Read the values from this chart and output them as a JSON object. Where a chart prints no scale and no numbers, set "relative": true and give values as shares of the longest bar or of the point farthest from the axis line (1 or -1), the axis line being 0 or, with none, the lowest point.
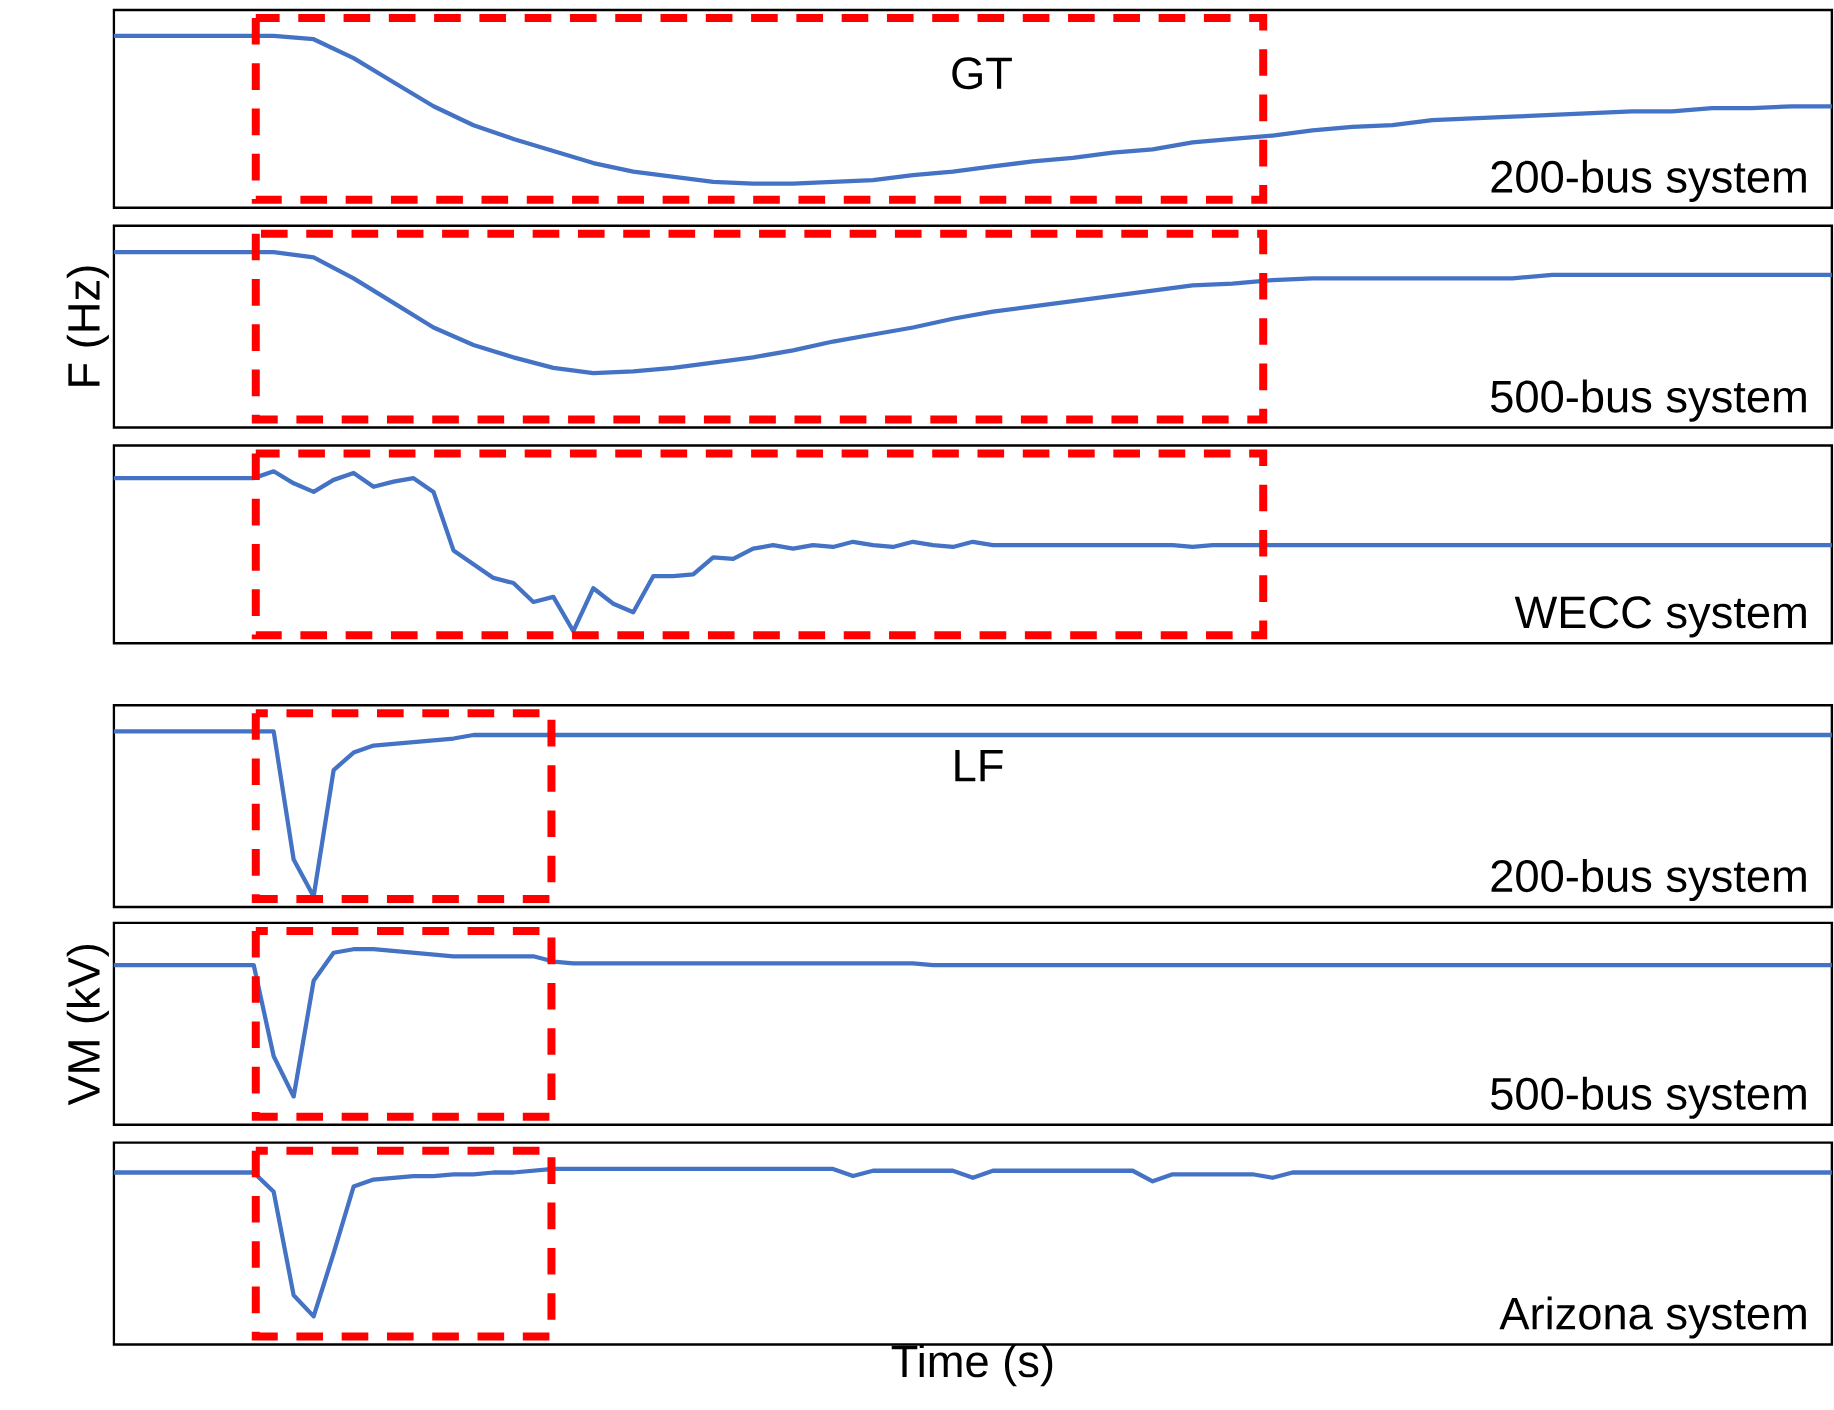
{
  "chart_data": [
    {
      "type": "line",
      "relative": true,
      "tick_labels": false,
      "title": "200-bus system",
      "annotations": [
        "GT"
      ],
      "categories": [
        null,
        null,
        null,
        null,
        null,
        null,
        null,
        null,
        null,
        null,
        null,
        null,
        null,
        null,
        null,
        null,
        null,
        null,
        null,
        null,
        null,
        null,
        null,
        null,
        null,
        null,
        null,
        null,
        null,
        null,
        null,
        null,
        null,
        null,
        null,
        null,
        null,
        null,
        null,
        null,
        null,
        null,
        null,
        null
      ],
      "series": [
        {
          "color": "#4472c4",
          "values": [
            1.0,
            1.0,
            1.0,
            1.0,
            1.0,
            0.98,
            0.87,
            0.73,
            0.59,
            0.48,
            0.4,
            0.33,
            0.26,
            0.21,
            0.18,
            0.15,
            0.14,
            0.14,
            0.15,
            0.16,
            0.19,
            0.21,
            0.24,
            0.27,
            0.29,
            0.32,
            0.34,
            0.38,
            0.4,
            0.42,
            0.45,
            0.47,
            0.48,
            0.51,
            0.52,
            0.53,
            0.54,
            0.55,
            0.56,
            0.56,
            0.58,
            0.58,
            0.59,
            0.59
          ]
        }
      ]
    },
    {
      "type": "line",
      "relative": true,
      "tick_labels": false,
      "title": "500-bus system",
      "ylabel": "F (Hz)",
      "categories": [
        null,
        null,
        null,
        null,
        null,
        null,
        null,
        null,
        null,
        null,
        null,
        null,
        null,
        null,
        null,
        null,
        null,
        null,
        null,
        null,
        null,
        null,
        null,
        null,
        null,
        null,
        null,
        null,
        null,
        null,
        null,
        null,
        null,
        null,
        null,
        null,
        null,
        null,
        null,
        null,
        null,
        null,
        null,
        null
      ],
      "series": [
        {
          "color": "#4472c4",
          "values": [
            1.0,
            1.0,
            1.0,
            1.0,
            1.0,
            0.97,
            0.85,
            0.71,
            0.57,
            0.47,
            0.4,
            0.34,
            0.31,
            0.32,
            0.34,
            0.37,
            0.4,
            0.44,
            0.49,
            0.53,
            0.57,
            0.62,
            0.66,
            0.69,
            0.72,
            0.75,
            0.78,
            0.81,
            0.82,
            0.84,
            0.85,
            0.85,
            0.85,
            0.85,
            0.85,
            0.85,
            0.87,
            0.87,
            0.87,
            0.87,
            0.87,
            0.87,
            0.87,
            0.87
          ]
        }
      ]
    },
    {
      "type": "line",
      "relative": true,
      "tick_labels": false,
      "title": "WECC system",
      "categories": [
        null,
        null,
        null,
        null,
        null,
        null,
        null,
        null,
        null,
        null,
        null,
        null,
        null,
        null,
        null,
        null,
        null,
        null,
        null,
        null,
        null,
        null,
        null,
        null,
        null,
        null,
        null,
        null,
        null,
        null,
        null,
        null,
        null,
        null,
        null,
        null,
        null,
        null,
        null,
        null,
        null,
        null,
        null,
        null,
        null,
        null,
        null,
        null,
        null,
        null,
        null,
        null,
        null,
        null,
        null,
        null,
        null,
        null,
        null,
        null,
        null,
        null,
        null,
        null,
        null,
        null,
        null,
        null,
        null,
        null,
        null,
        null,
        null,
        null,
        null,
        null,
        null,
        null,
        null,
        null,
        null,
        null,
        null,
        null,
        null,
        null,
        null
      ],
      "series": [
        {
          "color": "#4472c4",
          "values": [
            0.96,
            0.96,
            0.96,
            0.96,
            0.96,
            0.96,
            0.96,
            0.96,
            1.0,
            0.93,
            0.88,
            0.95,
            0.99,
            0.91,
            0.94,
            0.96,
            0.88,
            0.54,
            0.46,
            0.38,
            0.35,
            0.24,
            0.27,
            0.07,
            0.32,
            0.23,
            0.18,
            0.39,
            0.39,
            0.4,
            0.5,
            0.49,
            0.55,
            0.57,
            0.55,
            0.57,
            0.56,
            0.59,
            0.57,
            0.56,
            0.59,
            0.57,
            0.56,
            0.59,
            0.57,
            0.57,
            0.57,
            0.57,
            0.57,
            0.57,
            0.57,
            0.57,
            0.57,
            0.57,
            0.56,
            0.57,
            0.57,
            0.57,
            0.57,
            0.57,
            0.57,
            0.57,
            0.57,
            0.57,
            0.57,
            0.57,
            0.57,
            0.57,
            0.57,
            0.57,
            0.57,
            0.57,
            0.57,
            0.57,
            0.57,
            0.57,
            0.57,
            0.57,
            0.57,
            0.57,
            0.57,
            0.57,
            0.57,
            0.57,
            0.57,
            0.57,
            0.57
          ]
        }
      ]
    },
    {
      "type": "line",
      "relative": true,
      "tick_labels": false,
      "title": "200-bus system",
      "annotations": [
        "LF"
      ],
      "categories": [
        null,
        null,
        null,
        null,
        null,
        null,
        null,
        null,
        null,
        null,
        null,
        null,
        null,
        null,
        null,
        null,
        null,
        null,
        null,
        null,
        null,
        null,
        null,
        null,
        null,
        null,
        null,
        null,
        null,
        null,
        null,
        null,
        null,
        null,
        null,
        null,
        null,
        null,
        null,
        null,
        null,
        null,
        null,
        null,
        null,
        null,
        null,
        null,
        null,
        null,
        null,
        null,
        null,
        null,
        null,
        null,
        null,
        null,
        null,
        null,
        null,
        null,
        null,
        null,
        null,
        null,
        null,
        null,
        null,
        null,
        null,
        null,
        null,
        null,
        null,
        null,
        null,
        null,
        null,
        null,
        null,
        null,
        null,
        null,
        null,
        null,
        null
      ],
      "series": [
        {
          "color": "#4472c4",
          "values": [
            1.0,
            1.0,
            1.0,
            1.0,
            1.0,
            1.0,
            1.0,
            1.0,
            1.0,
            0.27,
            0.06,
            0.78,
            0.88,
            0.92,
            0.93,
            0.94,
            0.95,
            0.96,
            0.98,
            0.98,
            0.98,
            0.98,
            0.98,
            0.98,
            0.98,
            0.98,
            0.98,
            0.98,
            0.98,
            0.98,
            0.98,
            0.98,
            0.98,
            0.98,
            0.98,
            0.98,
            0.98,
            0.98,
            0.98,
            0.98,
            0.98,
            0.98,
            0.98,
            0.98,
            0.98,
            0.98,
            0.98,
            0.98,
            0.98,
            0.98,
            0.98,
            0.98,
            0.98,
            0.98,
            0.98,
            0.98,
            0.98,
            0.98,
            0.98,
            0.98,
            0.98,
            0.98,
            0.98,
            0.98,
            0.98,
            0.98,
            0.98,
            0.98,
            0.98,
            0.98,
            0.98,
            0.98,
            0.98,
            0.98,
            0.98,
            0.98,
            0.98,
            0.98,
            0.98,
            0.98,
            0.98,
            0.98,
            0.98,
            0.98,
            0.98,
            0.98,
            0.98
          ]
        }
      ]
    },
    {
      "type": "line",
      "relative": true,
      "tick_labels": false,
      "title": "500-bus system",
      "ylabel": "VM (kV)",
      "categories": [
        null,
        null,
        null,
        null,
        null,
        null,
        null,
        null,
        null,
        null,
        null,
        null,
        null,
        null,
        null,
        null,
        null,
        null,
        null,
        null,
        null,
        null,
        null,
        null,
        null,
        null,
        null,
        null,
        null,
        null,
        null,
        null,
        null,
        null,
        null,
        null,
        null,
        null,
        null,
        null,
        null,
        null,
        null,
        null,
        null,
        null,
        null,
        null,
        null,
        null,
        null,
        null,
        null,
        null,
        null,
        null,
        null,
        null,
        null,
        null,
        null,
        null,
        null,
        null,
        null,
        null,
        null,
        null,
        null,
        null,
        null,
        null,
        null,
        null,
        null,
        null,
        null,
        null,
        null,
        null,
        null,
        null,
        null,
        null,
        null,
        null,
        null
      ],
      "series": [
        {
          "color": "#4472c4",
          "values": [
            0.91,
            0.91,
            0.91,
            0.91,
            0.91,
            0.91,
            0.91,
            0.91,
            0.39,
            0.16,
            0.82,
            0.98,
            1.0,
            1.0,
            0.99,
            0.98,
            0.97,
            0.96,
            0.96,
            0.96,
            0.96,
            0.96,
            0.93,
            0.92,
            0.92,
            0.92,
            0.92,
            0.92,
            0.92,
            0.92,
            0.92,
            0.92,
            0.92,
            0.92,
            0.92,
            0.92,
            0.92,
            0.92,
            0.92,
            0.92,
            0.92,
            0.91,
            0.91,
            0.91,
            0.91,
            0.91,
            0.91,
            0.91,
            0.91,
            0.91,
            0.91,
            0.91,
            0.91,
            0.91,
            0.91,
            0.91,
            0.91,
            0.91,
            0.91,
            0.91,
            0.91,
            0.91,
            0.91,
            0.91,
            0.91,
            0.91,
            0.91,
            0.91,
            0.91,
            0.91,
            0.91,
            0.91,
            0.91,
            0.91,
            0.91,
            0.91,
            0.91,
            0.91,
            0.91,
            0.91,
            0.91,
            0.91,
            0.91,
            0.91,
            0.91,
            0.91,
            0.91
          ]
        }
      ]
    },
    {
      "type": "line",
      "relative": true,
      "tick_labels": false,
      "title": "Arizona system",
      "xlabel": "Time (s)",
      "categories": [
        null,
        null,
        null,
        null,
        null,
        null,
        null,
        null,
        null,
        null,
        null,
        null,
        null,
        null,
        null,
        null,
        null,
        null,
        null,
        null,
        null,
        null,
        null,
        null,
        null,
        null,
        null,
        null,
        null,
        null,
        null,
        null,
        null,
        null,
        null,
        null,
        null,
        null,
        null,
        null,
        null,
        null,
        null,
        null,
        null,
        null,
        null,
        null,
        null,
        null,
        null,
        null,
        null,
        null,
        null,
        null,
        null,
        null,
        null,
        null,
        null,
        null,
        null,
        null,
        null,
        null,
        null,
        null,
        null,
        null,
        null,
        null,
        null,
        null,
        null,
        null,
        null,
        null,
        null,
        null,
        null,
        null,
        null,
        null,
        null,
        null,
        null
      ],
      "series": [
        {
          "color": "#4472c4",
          "values": [
            0.98,
            0.98,
            0.98,
            0.98,
            0.98,
            0.98,
            0.98,
            0.98,
            0.87,
            0.28,
            0.16,
            0.52,
            0.9,
            0.94,
            0.95,
            0.96,
            0.96,
            0.97,
            0.97,
            0.98,
            0.98,
            0.99,
            1.0,
            1.0,
            1.0,
            1.0,
            1.0,
            1.0,
            1.0,
            1.0,
            1.0,
            1.0,
            1.0,
            1.0,
            1.0,
            1.0,
            1.0,
            0.96,
            0.99,
            0.99,
            0.99,
            0.99,
            0.99,
            0.95,
            0.99,
            0.99,
            0.99,
            0.99,
            0.99,
            0.99,
            0.99,
            0.99,
            0.93,
            0.97,
            0.97,
            0.97,
            0.97,
            0.97,
            0.95,
            0.98,
            0.98,
            0.98,
            0.98,
            0.98,
            0.98,
            0.98,
            0.98,
            0.98,
            0.98,
            0.98,
            0.98,
            0.98,
            0.98,
            0.98,
            0.98,
            0.98,
            0.98,
            0.98,
            0.98,
            0.98,
            0.98,
            0.98,
            0.98,
            0.98,
            0.98,
            0.98,
            0.98
          ]
        }
      ]
    }
  ]
}
